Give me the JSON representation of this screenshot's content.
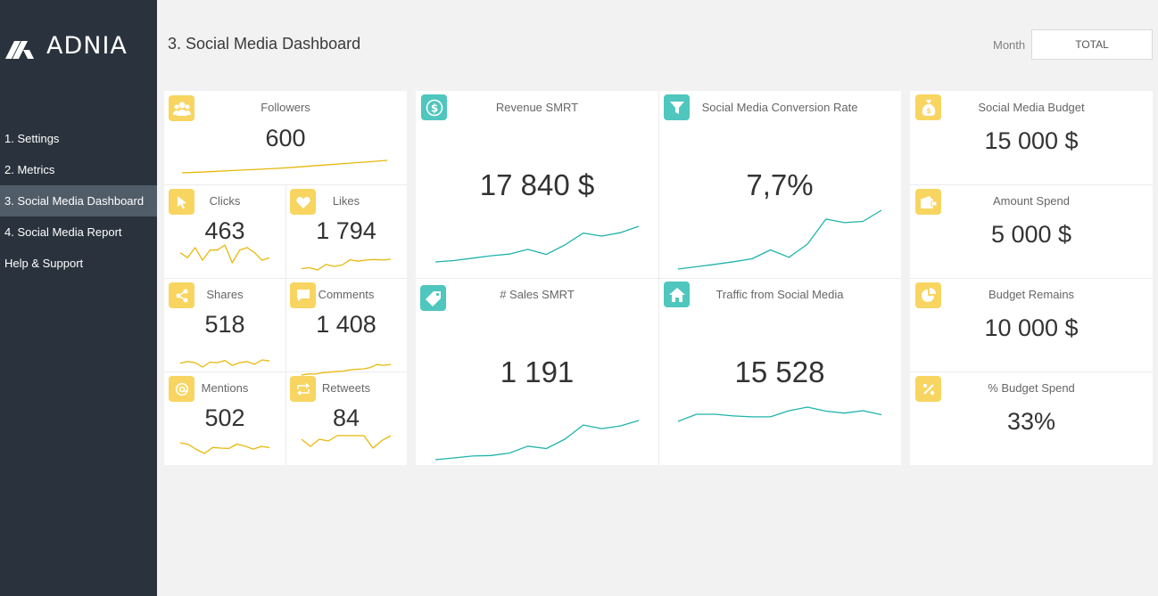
{
  "app": {
    "logo_text": "ADNIA"
  },
  "sidebar": {
    "items": [
      {
        "label": "1. Settings"
      },
      {
        "label": "2. Metrics"
      },
      {
        "label": "3. Social Media Dashboard",
        "active": true
      },
      {
        "label": "4. Social Media Report"
      },
      {
        "label": "Help & Support"
      }
    ]
  },
  "header": {
    "title": "3. Social Media Dashboard",
    "month_label": "Month",
    "month_value": "TOTAL"
  },
  "colors": {
    "accent_yellow": "#f7d560",
    "accent_teal": "#4fc6be",
    "sidebar": "#2a333d",
    "sidebar_active": "#505c68",
    "spark_yellow": "#e8b80c",
    "spark_teal": "#1fb3aa"
  },
  "kpis": {
    "followers": {
      "label": "Followers",
      "value": "600",
      "icon": "users-icon",
      "trend": [
        1,
        1.3,
        1.7,
        2.1,
        2.5,
        2.9,
        3.4,
        4,
        4.6,
        5.2,
        5.8,
        6.4
      ]
    },
    "clicks": {
      "label": "Clicks",
      "value": "463",
      "icon": "cursor-icon",
      "trend": [
        5,
        3,
        7,
        2,
        6,
        6,
        8,
        1,
        6,
        7,
        5,
        2,
        3
      ]
    },
    "likes": {
      "label": "Likes",
      "value": "1 794",
      "icon": "heart-icon",
      "trend": [
        2,
        2.3,
        1.5,
        3.5,
        2.8,
        3.3,
        5.2,
        4.7,
        5.1,
        5.3,
        5.1,
        5.4
      ]
    },
    "shares": {
      "label": "Shares",
      "value": "518",
      "icon": "share-icon",
      "trend": [
        4,
        4.3,
        4.1,
        3.3,
        4.2,
        4.1,
        4.5,
        3.6,
        4.1,
        4.3,
        3.8,
        4.6,
        4.4
      ]
    },
    "comments": {
      "label": "Comments",
      "value": "1 408",
      "icon": "comment-icon",
      "trend": [
        1,
        1.6,
        1.5,
        2.2,
        2.5,
        2.9,
        3.1,
        3.7,
        4.1,
        4.3,
        5,
        6.6,
        6.2,
        6.7
      ]
    },
    "mentions": {
      "label": "Mentions",
      "value": "502",
      "icon": "at-icon",
      "trend": [
        5,
        4.5,
        3,
        1.8,
        3.6,
        3.4,
        3.3,
        4.6,
        4,
        3.1,
        3.9,
        3.6
      ]
    },
    "retweets": {
      "label": "Retweets",
      "value": "84",
      "icon": "retweet-icon",
      "trend": [
        4,
        2,
        4,
        3.5,
        5,
        5,
        5,
        5,
        1.5,
        3.6,
        5
      ]
    },
    "revenue": {
      "label": "Revenue SMRT",
      "value": "17 840 $",
      "icon": "dollar-icon",
      "trend": [
        1,
        1.4,
        2.1,
        2.8,
        3.3,
        4.7,
        3.2,
        6,
        9.5,
        8.6,
        9.6,
        11.5
      ]
    },
    "conversion": {
      "label": "Social Media Conversion Rate",
      "value": "7,7%",
      "icon": "filter-icon",
      "trend": [
        0,
        0.8,
        1.6,
        2.5,
        3.5,
        6.5,
        4,
        8.5,
        17,
        15.8,
        16.2,
        20
      ]
    },
    "sales": {
      "label": "# Sales SMRT",
      "value": "1 191",
      "icon": "tag-icon",
      "trend": [
        0,
        0.6,
        1.2,
        1.4,
        2.2,
        4.5,
        3.7,
        6.8,
        11.5,
        10.3,
        11.2,
        13
      ]
    },
    "traffic": {
      "label": "Traffic from Social Media",
      "value": "15 528",
      "icon": "home-icon",
      "trend": [
        1,
        4,
        4,
        3.3,
        2.9,
        2.9,
        5.5,
        7,
        5.3,
        4.5,
        5.5,
        3.8
      ]
    },
    "budget": {
      "label": "Social Media Budget",
      "value": "15 000 $",
      "icon": "money-bag-icon"
    },
    "spend": {
      "label": "Amount Spend",
      "value": "5 000 $",
      "icon": "wallet-icon"
    },
    "remains": {
      "label": "Budget Remains",
      "value": "10 000 $",
      "icon": "pie-chart-icon"
    },
    "pct_spend": {
      "label": "% Budget Spend",
      "value": "33%",
      "icon": "percent-icon"
    }
  }
}
